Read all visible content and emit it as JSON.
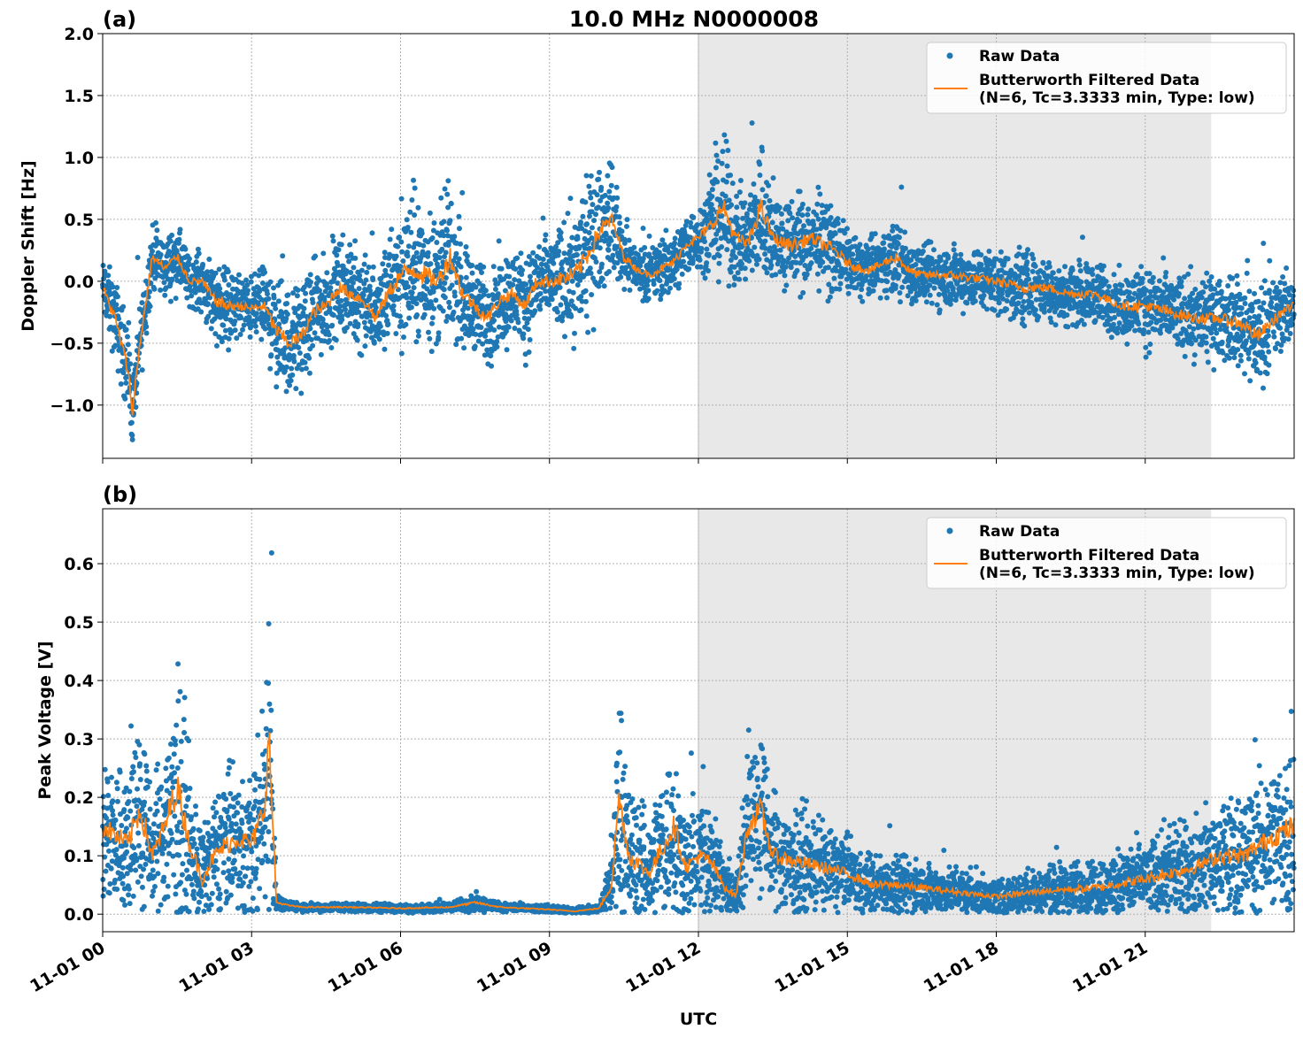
{
  "chart_data": [
    {
      "type": "scatter",
      "panel_label": "(a)",
      "title": "10.0 MHz N0000008",
      "ylabel": "Doppler Shift [Hz]",
      "xlabel": "",
      "x_unit": "hours UTC since 11-01 00",
      "xlim": [
        0,
        24
      ],
      "ylim": [
        -1.43,
        2.0
      ],
      "yticks": [
        -1.0,
        -0.5,
        0.0,
        0.5,
        1.0,
        1.5,
        2.0
      ],
      "ytick_labels": [
        "−1.0",
        "−0.5",
        "0.0",
        "0.5",
        "1.0",
        "1.5",
        "2.0"
      ],
      "grid": true,
      "legend_position": "top-right",
      "shaded_span": [
        12,
        22.33
      ],
      "series": [
        {
          "name": "Raw Data",
          "kind": "scatter",
          "color": "#1f77b4"
        },
        {
          "name": "Butterworth Filtered Data",
          "name_line2": "(N=6, Tc=3.3333 min, Type: low)",
          "kind": "line",
          "color": "#ff7f0e"
        }
      ],
      "filtered": {
        "x": [
          0,
          0.25,
          0.5,
          0.6,
          0.75,
          1.0,
          1.25,
          1.5,
          1.75,
          2.0,
          2.25,
          2.5,
          2.75,
          3.0,
          3.25,
          3.5,
          3.75,
          4.0,
          4.25,
          4.5,
          4.75,
          5.0,
          5.25,
          5.5,
          5.75,
          6.0,
          6.25,
          6.5,
          6.75,
          7.0,
          7.25,
          7.5,
          7.75,
          8.0,
          8.25,
          8.5,
          8.75,
          9.0,
          9.25,
          9.5,
          9.75,
          10.0,
          10.25,
          10.5,
          10.75,
          11.0,
          11.25,
          11.5,
          11.75,
          12.0,
          12.25,
          12.5,
          12.75,
          13.0,
          13.25,
          13.5,
          13.75,
          14.0,
          14.25,
          14.5,
          14.75,
          15.0,
          15.25,
          15.5,
          15.75,
          16.0,
          16.25,
          16.5,
          17.0,
          17.5,
          18.0,
          18.5,
          19.0,
          19.5,
          20.0,
          20.5,
          21.0,
          21.5,
          22.0,
          22.5,
          23.0,
          23.25,
          23.5,
          23.75,
          24.0
        ],
        "y": [
          -0.05,
          -0.3,
          -0.7,
          -1.05,
          -0.5,
          0.2,
          0.1,
          0.2,
          0.0,
          0.0,
          -0.15,
          -0.2,
          -0.2,
          -0.22,
          -0.2,
          -0.4,
          -0.5,
          -0.45,
          -0.25,
          -0.2,
          -0.05,
          -0.1,
          -0.15,
          -0.3,
          -0.1,
          0.05,
          0.1,
          0.05,
          0.0,
          0.2,
          -0.1,
          -0.2,
          -0.3,
          -0.15,
          -0.1,
          -0.2,
          0.0,
          0.0,
          0.02,
          0.05,
          0.2,
          0.4,
          0.5,
          0.2,
          0.1,
          0.05,
          0.1,
          0.15,
          0.3,
          0.35,
          0.45,
          0.6,
          0.35,
          0.3,
          0.6,
          0.35,
          0.3,
          0.3,
          0.35,
          0.3,
          0.25,
          0.15,
          0.1,
          0.1,
          0.15,
          0.2,
          0.08,
          0.05,
          0.05,
          0.03,
          0.0,
          -0.05,
          -0.05,
          -0.1,
          -0.1,
          -0.2,
          -0.2,
          -0.25,
          -0.3,
          -0.3,
          -0.35,
          -0.45,
          -0.35,
          -0.25,
          -0.2
        ]
      },
      "raw_spread": [
        0.2,
        0.25,
        0.3,
        0.2,
        0.25,
        0.2,
        0.2,
        0.2,
        0.15,
        0.2,
        0.25,
        0.25,
        0.2,
        0.2,
        0.25,
        0.35,
        0.35,
        0.3,
        0.3,
        0.3,
        0.3,
        0.3,
        0.3,
        0.3,
        0.35,
        0.45,
        0.5,
        0.45,
        0.4,
        0.5,
        0.35,
        0.3,
        0.3,
        0.3,
        0.3,
        0.3,
        0.3,
        0.3,
        0.35,
        0.4,
        0.45,
        0.4,
        0.35,
        0.2,
        0.15,
        0.15,
        0.2,
        0.2,
        0.2,
        0.2,
        0.3,
        0.45,
        0.3,
        0.3,
        0.45,
        0.3,
        0.3,
        0.3,
        0.3,
        0.3,
        0.25,
        0.2,
        0.2,
        0.2,
        0.2,
        0.25,
        0.2,
        0.2,
        0.2,
        0.2,
        0.2,
        0.25,
        0.2,
        0.2,
        0.2,
        0.2,
        0.25,
        0.25,
        0.25,
        0.25,
        0.3,
        0.35,
        0.25,
        0.25,
        0.2
      ]
    },
    {
      "type": "scatter",
      "panel_label": "(b)",
      "title": "",
      "ylabel": "Peak Voltage [V]",
      "xlabel": "UTC",
      "x_unit": "hours UTC since 11-01 00",
      "xlim": [
        0,
        24
      ],
      "ylim": [
        -0.03,
        0.694
      ],
      "yticks": [
        0.0,
        0.1,
        0.2,
        0.3,
        0.4,
        0.5,
        0.6
      ],
      "ytick_labels": [
        "0.0",
        "0.1",
        "0.2",
        "0.3",
        "0.4",
        "0.5",
        "0.6"
      ],
      "xticks": [
        0,
        3,
        6,
        9,
        12,
        15,
        18,
        21
      ],
      "xtick_labels": [
        "11-01 00",
        "11-01 03",
        "11-01 06",
        "11-01 09",
        "11-01 12",
        "11-01 15",
        "11-01 18",
        "11-01 21"
      ],
      "grid": true,
      "legend_position": "top-right",
      "shaded_span": [
        12,
        22.33
      ],
      "series": [
        {
          "name": "Raw Data",
          "kind": "scatter",
          "color": "#1f77b4"
        },
        {
          "name": "Butterworth Filtered Data",
          "name_line2": "(N=6, Tc=3.3333 min, Type: low)",
          "kind": "line",
          "color": "#ff7f0e"
        }
      ],
      "filtered": {
        "x": [
          0,
          0.5,
          0.75,
          1.0,
          1.25,
          1.5,
          1.75,
          2.0,
          2.25,
          2.5,
          2.75,
          3.0,
          3.25,
          3.35,
          3.5,
          3.75,
          4,
          5,
          6,
          7,
          7.5,
          8,
          9,
          9.5,
          10,
          10.25,
          10.4,
          10.6,
          11,
          11.5,
          11.75,
          12,
          12.25,
          12.5,
          12.75,
          13,
          13.25,
          13.5,
          14,
          14.5,
          15,
          15.5,
          16,
          17,
          18,
          18.5,
          19,
          20,
          21,
          21.5,
          22,
          22.5,
          23,
          23.5,
          24
        ],
        "y": [
          0.15,
          0.12,
          0.18,
          0.1,
          0.15,
          0.22,
          0.12,
          0.06,
          0.1,
          0.12,
          0.13,
          0.12,
          0.18,
          0.3,
          0.02,
          0.015,
          0.012,
          0.012,
          0.01,
          0.012,
          0.02,
          0.012,
          0.008,
          0.005,
          0.01,
          0.05,
          0.2,
          0.1,
          0.07,
          0.15,
          0.08,
          0.1,
          0.09,
          0.05,
          0.03,
          0.15,
          0.18,
          0.1,
          0.09,
          0.08,
          0.07,
          0.05,
          0.05,
          0.04,
          0.03,
          0.035,
          0.04,
          0.045,
          0.06,
          0.07,
          0.08,
          0.1,
          0.1,
          0.13,
          0.15
        ]
      },
      "raw_spread": [
        0.1,
        0.1,
        0.15,
        0.08,
        0.12,
        0.18,
        0.1,
        0.06,
        0.08,
        0.1,
        0.1,
        0.1,
        0.15,
        0.25,
        0.01,
        0.006,
        0.006,
        0.006,
        0.006,
        0.006,
        0.012,
        0.006,
        0.005,
        0.004,
        0.006,
        0.05,
        0.15,
        0.1,
        0.07,
        0.12,
        0.07,
        0.08,
        0.07,
        0.05,
        0.03,
        0.1,
        0.12,
        0.08,
        0.07,
        0.06,
        0.05,
        0.04,
        0.04,
        0.03,
        0.025,
        0.03,
        0.03,
        0.04,
        0.05,
        0.06,
        0.06,
        0.08,
        0.08,
        0.1,
        0.12
      ]
    }
  ]
}
